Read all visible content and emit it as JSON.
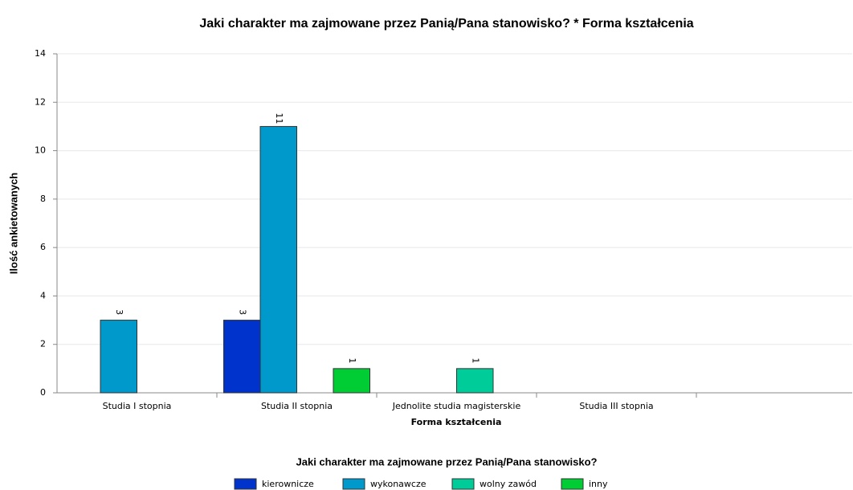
{
  "chart_data": {
    "type": "bar",
    "title": "Jaki charakter ma zajmowane przez Panią/Pana stanowisko? * Forma kształcenia",
    "x_label": "Forma kształcenia",
    "y_label": "Ilość ankietowanych",
    "legend_title": "Jaki charakter ma zajmowane przez Panią/Pana stanowisko?",
    "categories": [
      "Studia I stopnia",
      "Studia II stopnia",
      "Jednolite studia magisterskie",
      "Studia III stopnia",
      null
    ],
    "series": [
      {
        "name": "kierownicze",
        "color": "#0033cc",
        "values": [
          null,
          3,
          null,
          null,
          null
        ]
      },
      {
        "name": "wykonawcze",
        "color": "#0099cc",
        "values": [
          3,
          11,
          null,
          null,
          null
        ]
      },
      {
        "name": "wolny zawód",
        "color": "#00cc99",
        "values": [
          null,
          null,
          1,
          null,
          null
        ]
      },
      {
        "name": "inny",
        "color": "#00cc33",
        "values": [
          null,
          1,
          null,
          null,
          null
        ]
      }
    ],
    "ylim": [
      0,
      14
    ],
    "yticks": [
      0,
      2,
      4,
      6,
      8,
      10,
      12,
      14
    ],
    "grid": true,
    "legend": "bottom"
  }
}
